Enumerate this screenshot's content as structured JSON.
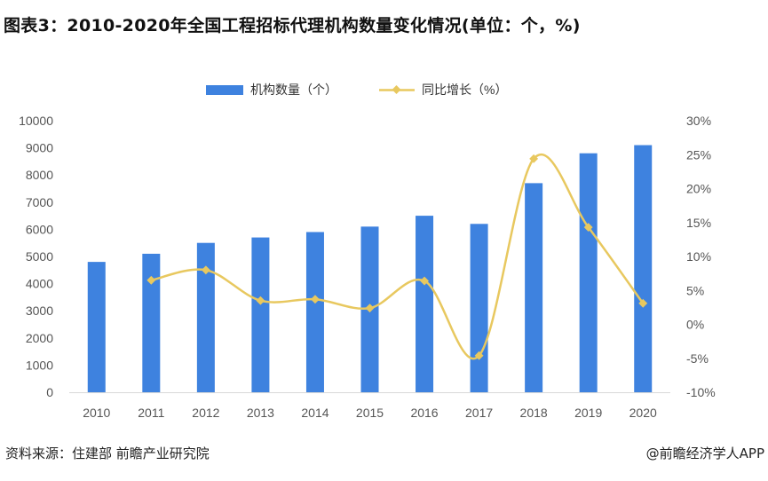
{
  "title": "图表3：2010-2020年全国工程招标代理机构数量变化情况(单位：个，%)",
  "source": "资料来源：住建部 前瞻产业研究院",
  "credit": "@前瞻经济学人APP",
  "colors": {
    "bar": "#3e82df",
    "line": "#e8c85f",
    "axis_text": "#555555"
  },
  "chart_data": {
    "type": "bar",
    "categories": [
      "2010",
      "2011",
      "2012",
      "2013",
      "2014",
      "2015",
      "2016",
      "2017",
      "2018",
      "2019",
      "2020"
    ],
    "series": [
      {
        "name": "机构数量（个）",
        "type": "bar",
        "axis": "left",
        "values": [
          4800,
          5100,
          5500,
          5700,
          5900,
          6100,
          6500,
          6200,
          7700,
          8800,
          9100
        ]
      },
      {
        "name": "同比增长（%）",
        "type": "line",
        "axis": "right",
        "values": [
          null,
          6.5,
          8.0,
          3.5,
          3.7,
          2.4,
          6.4,
          -4.6,
          24.4,
          14.3,
          3.1
        ]
      }
    ],
    "ylim_left": [
      0,
      10000
    ],
    "yticks_left": [
      "10000",
      "9000",
      "8000",
      "7000",
      "6000",
      "5000",
      "4000",
      "3000",
      "2000",
      "1000",
      "0"
    ],
    "ylim_right": [
      -10,
      30
    ],
    "yticks_right": [
      "30%",
      "25%",
      "20%",
      "15%",
      "10%",
      "5%",
      "0%",
      "-5%",
      "-10%"
    ],
    "grid": false,
    "legend": "top-center"
  }
}
